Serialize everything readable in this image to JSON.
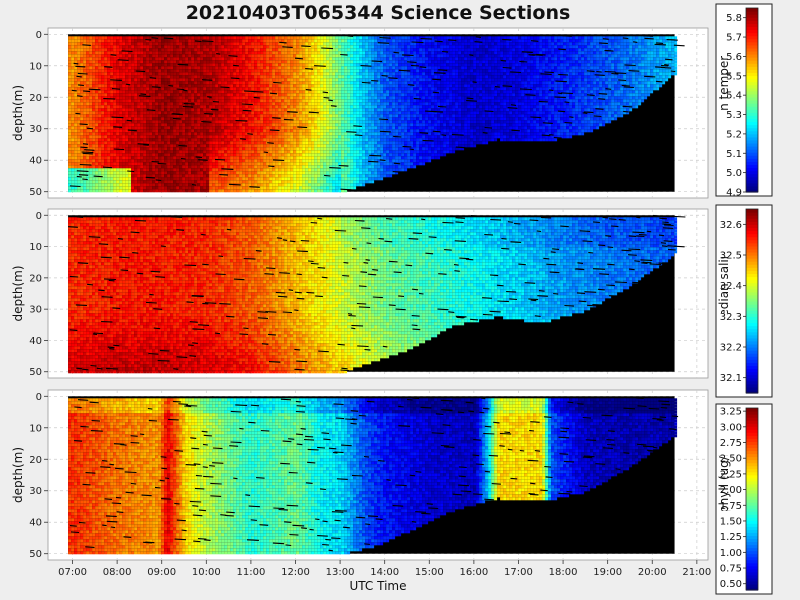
{
  "chart_data": [
    {
      "type": "heatmap",
      "title": "20210403T065344 Science Sections",
      "variable": "temperature",
      "ylabel": "depth(m)",
      "colorbar_label": "Seabird bin median temperature (degC)",
      "ylim": [
        52,
        -2
      ],
      "yticks": [
        "0",
        "10",
        "20",
        "30",
        "40",
        "50"
      ],
      "colorbar_range": [
        4.9,
        5.85
      ],
      "colorbar_ticks": [
        "4.9",
        "5.0",
        "5.1",
        "5.2",
        "5.3",
        "5.4",
        "5.5",
        "5.6",
        "5.7",
        "5.8"
      ],
      "bottom_depth_profile": {
        "x_hours": [
          6.9,
          11.0,
          13.0,
          13.8,
          14.6,
          15.5,
          16.5,
          17.5,
          18.5,
          19.5,
          20.5
        ],
        "depth_m": [
          50,
          50,
          50,
          46,
          42,
          37,
          33,
          34,
          31,
          24,
          12
        ]
      },
      "value_profile": {
        "x_hours": [
          7.0,
          8.0,
          9.0,
          10.0,
          11.0,
          12.0,
          12.5,
          13.0,
          13.5,
          14.0,
          15.0,
          16.0,
          17.0,
          18.0,
          19.0,
          20.5
        ],
        "value": [
          5.6,
          5.75,
          5.82,
          5.8,
          5.72,
          5.6,
          5.5,
          5.35,
          5.2,
          5.1,
          5.02,
          4.98,
          5.0,
          5.05,
          5.1,
          5.2
        ]
      }
    },
    {
      "type": "heatmap",
      "variable": "salinity",
      "ylabel": "depth(m)",
      "colorbar_label": "Seabird bin median salinity (psu)",
      "ylim": [
        52,
        -2
      ],
      "yticks": [
        "0",
        "10",
        "20",
        "30",
        "40",
        "50"
      ],
      "colorbar_range": [
        32.05,
        32.65
      ],
      "colorbar_ticks": [
        "32.1",
        "32.2",
        "32.3",
        "32.4",
        "32.5",
        "32.6"
      ],
      "bottom_depth_profile": {
        "x_hours": [
          6.9,
          11.0,
          13.0,
          13.8,
          14.6,
          15.5,
          16.5,
          17.5,
          18.5,
          19.5,
          20.5
        ],
        "depth_m": [
          50,
          50,
          50,
          46,
          42,
          35,
          32,
          34,
          30,
          22,
          12
        ]
      },
      "value_profile": {
        "x_hours": [
          7.0,
          8.0,
          9.0,
          10.0,
          11.0,
          12.0,
          13.0,
          14.0,
          15.0,
          16.0,
          17.0,
          18.0,
          19.0,
          20.5
        ],
        "value": [
          32.55,
          32.56,
          32.56,
          32.55,
          32.52,
          32.46,
          32.4,
          32.34,
          32.31,
          32.28,
          32.25,
          32.22,
          32.2,
          32.18
        ]
      }
    },
    {
      "type": "heatmap",
      "variable": "chlorophyll",
      "ylabel": "depth(m)",
      "xlabel": "UTC Time",
      "colorbar_label": "chlorophyll (ug/l)",
      "ylim": [
        52,
        -2
      ],
      "yticks": [
        "0",
        "10",
        "20",
        "30",
        "40",
        "50"
      ],
      "xticks": [
        "07:00",
        "08:00",
        "09:00",
        "10:00",
        "11:00",
        "12:00",
        "13:00",
        "14:00",
        "15:00",
        "16:00",
        "17:00",
        "18:00",
        "19:00",
        "20:00",
        "21:00"
      ],
      "xlim_hours": [
        6.45,
        21.25
      ],
      "colorbar_range": [
        0.4,
        3.3
      ],
      "colorbar_ticks": [
        "0.50",
        "0.75",
        "1.00",
        "1.25",
        "1.50",
        "1.75",
        "2.00",
        "2.25",
        "2.50",
        "2.75",
        "3.00",
        "3.25"
      ],
      "bottom_depth_profile": {
        "x_hours": [
          6.9,
          11.0,
          13.0,
          13.8,
          14.6,
          15.5,
          16.5,
          17.5,
          18.5,
          19.5,
          20.5
        ],
        "depth_m": [
          50,
          50,
          50,
          47,
          42,
          36,
          32,
          33,
          30,
          22,
          12
        ]
      },
      "value_profile": {
        "x_hours": [
          7.0,
          8.0,
          8.9,
          9.1,
          9.5,
          10.0,
          11.0,
          12.0,
          12.5,
          13.0,
          13.5,
          14.0,
          15.0,
          16.0,
          16.3,
          16.5,
          17.5,
          17.7,
          18.5,
          19.5,
          20.5
        ],
        "value": [
          2.8,
          2.6,
          2.5,
          3.0,
          2.3,
          2.0,
          1.6,
          1.8,
          1.5,
          1.4,
          1.0,
          0.8,
          0.65,
          0.6,
          1.4,
          2.3,
          2.3,
          1.0,
          0.6,
          0.55,
          0.55
        ]
      }
    }
  ]
}
